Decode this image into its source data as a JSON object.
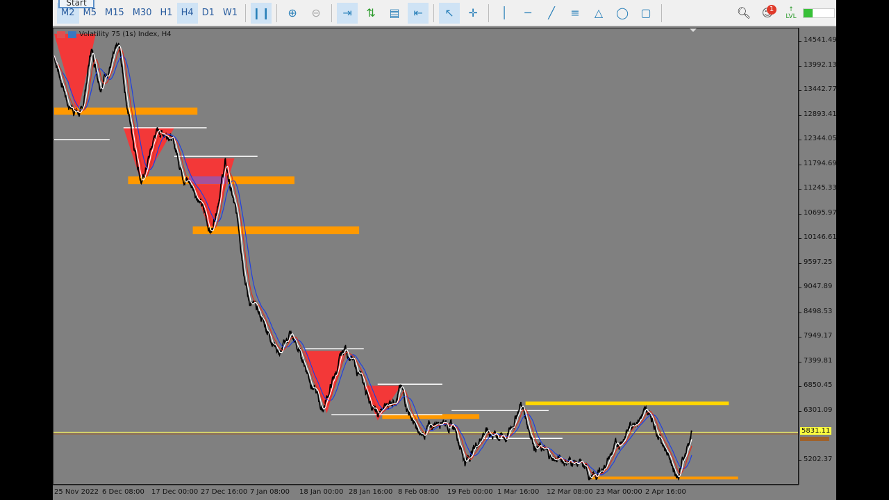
{
  "toolbar": {
    "start_label": "Start",
    "timeframes": [
      {
        "label": "M2",
        "active": true
      },
      {
        "label": "M5"
      },
      {
        "label": "M15"
      },
      {
        "label": "M30"
      },
      {
        "label": "H1"
      },
      {
        "label": "H4",
        "active": true
      },
      {
        "label": "D1"
      },
      {
        "label": "W1"
      }
    ],
    "tools": [
      "candlestick-chart-icon",
      "zoom-in-icon",
      "zoom-out-icon",
      "autoscroll-icon",
      "buy-sell-icon",
      "templates-icon",
      "chart-shift-icon",
      "cursor-icon",
      "crosshair-icon",
      "vertical-line-icon",
      "horizontal-line-icon",
      "trendline-icon",
      "fibonacci-icon",
      "triangle-icon",
      "ellipse-icon",
      "rectangle-icon"
    ],
    "notification_count": "1",
    "lvl_label": "LVL"
  },
  "chart": {
    "title": "Volatility 75 (1s) Index, H4",
    "price_labels": [
      "14541.49",
      "13992.13",
      "13442.77",
      "12893.41",
      "12344.05",
      "11794.69",
      "11245.33",
      "10695.97",
      "10146.61",
      "9597.25",
      "9047.89",
      "8498.53",
      "7949.17",
      "7399.81",
      "6850.45",
      "6301.09",
      "5202.37"
    ],
    "current_price": "5831.11",
    "time_labels": [
      "25 Nov 2022",
      "6 Dec 08:00",
      "17 Dec 00:00",
      "27 Dec 16:00",
      "7 Jan 08:00",
      "18 Jan 00:00",
      "28 Jan 16:00",
      "8 Feb 08:00",
      "19 Feb 00:00",
      "1 Mar 16:00",
      "12 Mar 08:00",
      "23 Mar 00:00",
      "2 Apr 16:00"
    ],
    "colors": {
      "background": "#808080",
      "price": "#000000",
      "ma_fast": "#ffffff",
      "ma_mid": "#e03020",
      "ma_slow": "#2040e0",
      "demand_zone": "#ff9900",
      "yellow_zone": "#ffd700",
      "supply_triangle": "#ff3030",
      "current_line": "#ffff60"
    }
  },
  "chart_data": {
    "type": "line",
    "symbol": "Volatility 75 (1s) Index",
    "timeframe": "H4",
    "ylim": [
      4780,
      14700
    ],
    "price": [
      [
        "2022-11-25",
        14217
      ],
      [
        "2022-11-28",
        13134
      ],
      [
        "2022-12-01",
        12902
      ],
      [
        "2022-12-03",
        14371
      ],
      [
        "2022-12-05",
        13598
      ],
      [
        "2022-12-09",
        14371
      ],
      [
        "2022-12-11",
        12979
      ],
      [
        "2022-12-14",
        11354
      ],
      [
        "2022-12-17",
        12515
      ],
      [
        "2022-12-20",
        12515
      ],
      [
        "2022-12-23",
        11587
      ],
      [
        "2022-12-26",
        11123
      ],
      [
        "2022-12-29",
        10272
      ],
      [
        "2023-01-01",
        11819
      ],
      [
        "2023-01-04",
        10349
      ],
      [
        "2023-01-06",
        8802
      ],
      [
        "2023-01-09",
        8338
      ],
      [
        "2023-01-13",
        7564
      ],
      [
        "2023-01-15",
        8029
      ],
      [
        "2023-01-18",
        7410
      ],
      [
        "2023-01-22",
        6327
      ],
      [
        "2023-01-27",
        7719
      ],
      [
        "2023-01-30",
        7100
      ],
      [
        "2023-02-03",
        6172
      ],
      [
        "2023-02-08",
        6791
      ],
      [
        "2023-02-12",
        5708
      ],
      [
        "2023-02-17",
        6172
      ],
      [
        "2023-02-20",
        5863
      ],
      [
        "2023-02-22",
        5167
      ],
      [
        "2023-02-26",
        5863
      ],
      [
        "2023-03-03",
        5708
      ],
      [
        "2023-03-06",
        6482
      ],
      [
        "2023-03-09",
        5553
      ],
      [
        "2023-03-13",
        5244
      ],
      [
        "2023-03-18",
        5167
      ],
      [
        "2023-03-22",
        4780
      ],
      [
        "2023-03-25",
        5244
      ],
      [
        "2023-03-31",
        6172
      ],
      [
        "2023-04-03",
        6250
      ],
      [
        "2023-04-06",
        5553
      ],
      [
        "2023-04-09",
        4857
      ],
      [
        "2023-04-12",
        5831
      ]
    ],
    "orange_zones": [
      [
        "2022-11-25",
        "2022-12-26",
        12900,
        13060
      ],
      [
        "2022-12-11",
        "2023-01-16",
        11354,
        11525
      ],
      [
        "2022-12-25",
        "2023-01-30",
        10241,
        10411
      ],
      [
        "2023-02-04",
        "2023-02-25",
        6126,
        6234
      ],
      [
        "2023-03-21",
        "2023-04-22",
        4780,
        4842
      ]
    ],
    "yellow_zones": [
      [
        "2023-03-07",
        "2023-04-20",
        6435,
        6512
      ]
    ],
    "white_levels": [
      [
        "2022-11-25",
        "2022-12-07",
        12345
      ],
      [
        "2022-12-10",
        "2022-12-28",
        12608
      ],
      [
        "2022-12-21",
        "2023-01-08",
        11973
      ],
      [
        "2023-01-18",
        "2023-01-31",
        7688
      ],
      [
        "2023-02-03",
        "2023-02-17",
        6899
      ],
      [
        "2023-01-24",
        "2023-02-17",
        6219
      ],
      [
        "2023-02-19",
        "2023-03-12",
        6312
      ],
      [
        "2023-02-26",
        "2023-03-15",
        5693
      ]
    ],
    "supply_triangles": [
      [
        "2022-11-25",
        "2022-12-04",
        14700,
        "2022-11-30",
        12902
      ],
      [
        "2022-12-10",
        "2022-12-21",
        12608,
        "2022-12-14",
        11354
      ],
      [
        "2022-12-23",
        "2023-01-03",
        11926,
        "2022-12-29",
        10226
      ],
      [
        "2023-01-18",
        "2023-01-27",
        7642,
        "2023-01-23",
        6250
      ],
      [
        "2023-01-31",
        "2023-02-08",
        6864,
        "2023-02-03",
        6091
      ]
    ]
  }
}
